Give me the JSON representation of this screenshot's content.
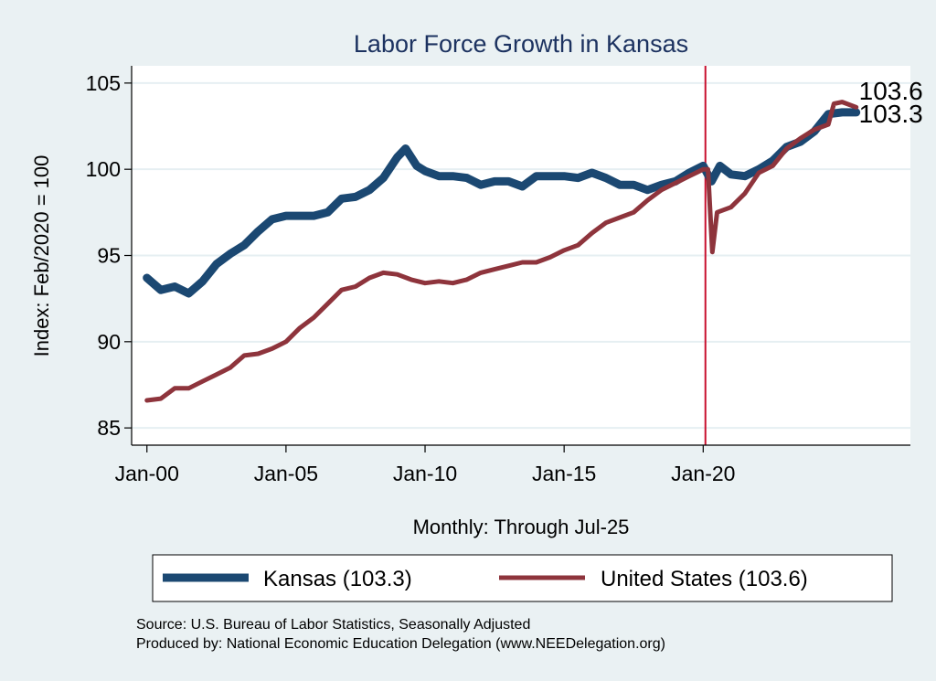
{
  "chart_data": {
    "type": "line",
    "title": "Labor Force Growth in Kansas",
    "xlabel": "Monthly: Through Jul-25",
    "ylabel": "Index: Feb/2020 = 100",
    "ylim": [
      84,
      106
    ],
    "xlim": [
      1999.45,
      2027.45
    ],
    "yticks": [
      85,
      90,
      95,
      100,
      105
    ],
    "xticks": [
      {
        "value": 2000,
        "label": "Jan-00"
      },
      {
        "value": 2005,
        "label": "Jan-05"
      },
      {
        "value": 2010,
        "label": "Jan-10"
      },
      {
        "value": 2015,
        "label": "Jan-15"
      },
      {
        "value": 2020,
        "label": "Jan-20"
      }
    ],
    "grid": "horizontal",
    "reference_line": {
      "x": 2020.08,
      "color": "#c8102e"
    },
    "series": [
      {
        "name": "Kansas",
        "color": "#1b4872",
        "end_label": "103.3",
        "x": [
          2000.0,
          2000.5,
          2001.0,
          2001.5,
          2002.0,
          2002.5,
          2003.0,
          2003.5,
          2004.0,
          2004.5,
          2005.0,
          2005.5,
          2006.0,
          2006.5,
          2007.0,
          2007.5,
          2008.0,
          2008.5,
          2009.0,
          2009.3,
          2009.7,
          2010.0,
          2010.5,
          2011.0,
          2011.5,
          2012.0,
          2012.5,
          2013.0,
          2013.5,
          2014.0,
          2015.0,
          2015.5,
          2016.0,
          2016.5,
          2017.0,
          2017.5,
          2018.0,
          2018.5,
          2019.0,
          2019.5,
          2020.0,
          2020.3,
          2020.6,
          2021.0,
          2021.5,
          2022.0,
          2022.5,
          2023.0,
          2023.5,
          2024.0,
          2024.5,
          2025.0,
          2025.5
        ],
        "values": [
          93.7,
          93.0,
          93.2,
          92.8,
          93.5,
          94.5,
          95.1,
          95.6,
          96.4,
          97.1,
          97.3,
          97.3,
          97.3,
          97.5,
          98.3,
          98.4,
          98.8,
          99.5,
          100.7,
          101.2,
          100.2,
          99.9,
          99.6,
          99.6,
          99.5,
          99.1,
          99.3,
          99.3,
          99.0,
          99.6,
          99.6,
          99.5,
          99.8,
          99.5,
          99.1,
          99.1,
          98.8,
          99.1,
          99.3,
          99.8,
          100.2,
          99.3,
          100.2,
          99.7,
          99.6,
          100.0,
          100.5,
          101.3,
          101.6,
          102.2,
          103.2,
          103.3,
          103.3
        ]
      },
      {
        "name": "United States",
        "color": "#8e343c",
        "end_label": "103.6",
        "x": [
          2000.0,
          2000.5,
          2001.0,
          2001.5,
          2002.0,
          2002.5,
          2003.0,
          2003.5,
          2004.0,
          2004.5,
          2005.0,
          2005.5,
          2006.0,
          2006.5,
          2007.0,
          2007.5,
          2008.0,
          2008.5,
          2009.0,
          2009.5,
          2010.0,
          2010.5,
          2011.0,
          2011.5,
          2012.0,
          2012.5,
          2013.0,
          2013.5,
          2014.0,
          2014.5,
          2015.0,
          2015.5,
          2016.0,
          2016.5,
          2017.0,
          2017.5,
          2018.0,
          2018.5,
          2019.0,
          2019.5,
          2020.0,
          2020.17,
          2020.33,
          2020.5,
          2021.0,
          2021.5,
          2022.0,
          2022.5,
          2023.0,
          2023.5,
          2024.0,
          2024.5,
          2024.7,
          2025.0,
          2025.5
        ],
        "values": [
          86.6,
          86.7,
          87.3,
          87.3,
          87.7,
          88.1,
          88.5,
          89.2,
          89.3,
          89.6,
          90.0,
          90.8,
          91.4,
          92.2,
          93.0,
          93.2,
          93.7,
          94.0,
          93.9,
          93.6,
          93.4,
          93.5,
          93.4,
          93.6,
          94.0,
          94.2,
          94.4,
          94.6,
          94.6,
          94.9,
          95.3,
          95.6,
          96.3,
          96.9,
          97.2,
          97.5,
          98.2,
          98.8,
          99.2,
          99.6,
          100.0,
          100.0,
          95.2,
          97.5,
          97.8,
          98.6,
          99.8,
          100.2,
          101.2,
          101.8,
          102.3,
          102.6,
          103.8,
          103.9,
          103.6
        ]
      }
    ],
    "legend": {
      "position": "bottom",
      "items": [
        {
          "label": "Kansas (103.3)",
          "color": "#1b4872"
        },
        {
          "label": "United States (103.6)",
          "color": "#8e343c"
        }
      ]
    },
    "notes": [
      "Source: U.S. Bureau of Labor Statistics, Seasonally Adjusted",
      "Produced by: National Economic Education Delegation (www.NEEDelegation.org)"
    ]
  }
}
